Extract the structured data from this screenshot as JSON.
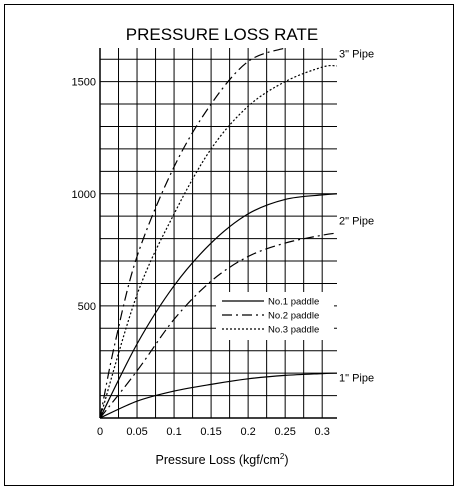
{
  "chart_data": {
    "type": "line",
    "title": "PRESSURE LOSS RATE",
    "xlabel": "Pressure Loss (kgf/cm",
    "xlabel_sup": "2",
    "xlabel_end": ")",
    "ylabel": "",
    "xlim": [
      0,
      0.32
    ],
    "ylim": [
      0,
      1650
    ],
    "xticks": [
      "0",
      "0.05",
      "0.1",
      "0.15",
      "0.2",
      "0.25",
      "0.3"
    ],
    "yticks": [
      "500",
      "1000",
      "1500"
    ],
    "grid": true,
    "legend_position": "center-right",
    "pipe_labels": [
      {
        "text": "3\" Pipe",
        "y": 1625
      },
      {
        "text": "2\" Pipe",
        "y": 880
      },
      {
        "text": "1\" Pipe",
        "y": 180
      }
    ],
    "series": [
      {
        "name": "No.1 paddle",
        "dash": "solid",
        "group": "3\"",
        "x": [
          0,
          0.05,
          0.1,
          0.15,
          0.2,
          0.25,
          0.3,
          0.32
        ],
        "y": [
          0,
          330,
          590,
          780,
          910,
          975,
          995,
          1000
        ]
      },
      {
        "name": "No.2 paddle",
        "dash": "dashdot",
        "group": "3\"",
        "x": [
          0,
          0.02,
          0.05,
          0.1,
          0.15,
          0.2,
          0.25
        ],
        "y": [
          0,
          330,
          720,
          1120,
          1400,
          1590,
          1650
        ]
      },
      {
        "name": "No.3 paddle",
        "dash": "dotted",
        "group": "3\"",
        "x": [
          0,
          0.05,
          0.1,
          0.15,
          0.2,
          0.25,
          0.3,
          0.32
        ],
        "y": [
          0,
          550,
          910,
          1200,
          1390,
          1500,
          1565,
          1570
        ]
      },
      {
        "name": "No.2 paddle",
        "dash": "dashdot",
        "group": "2\"",
        "x": [
          0,
          0.05,
          0.1,
          0.15,
          0.2,
          0.25,
          0.3,
          0.32
        ],
        "y": [
          0,
          210,
          440,
          610,
          720,
          780,
          815,
          825
        ]
      },
      {
        "name": "No.1 paddle",
        "dash": "solid",
        "group": "1\"",
        "x": [
          0,
          0.05,
          0.1,
          0.15,
          0.2,
          0.25,
          0.3,
          0.32
        ],
        "y": [
          0,
          75,
          120,
          150,
          175,
          190,
          198,
          200
        ]
      }
    ],
    "legend": [
      {
        "label": "No.1 paddle",
        "dash": "solid"
      },
      {
        "label": "No.2 paddle",
        "dash": "dashdot"
      },
      {
        "label": "No.3 paddle",
        "dash": "dotted"
      }
    ]
  }
}
